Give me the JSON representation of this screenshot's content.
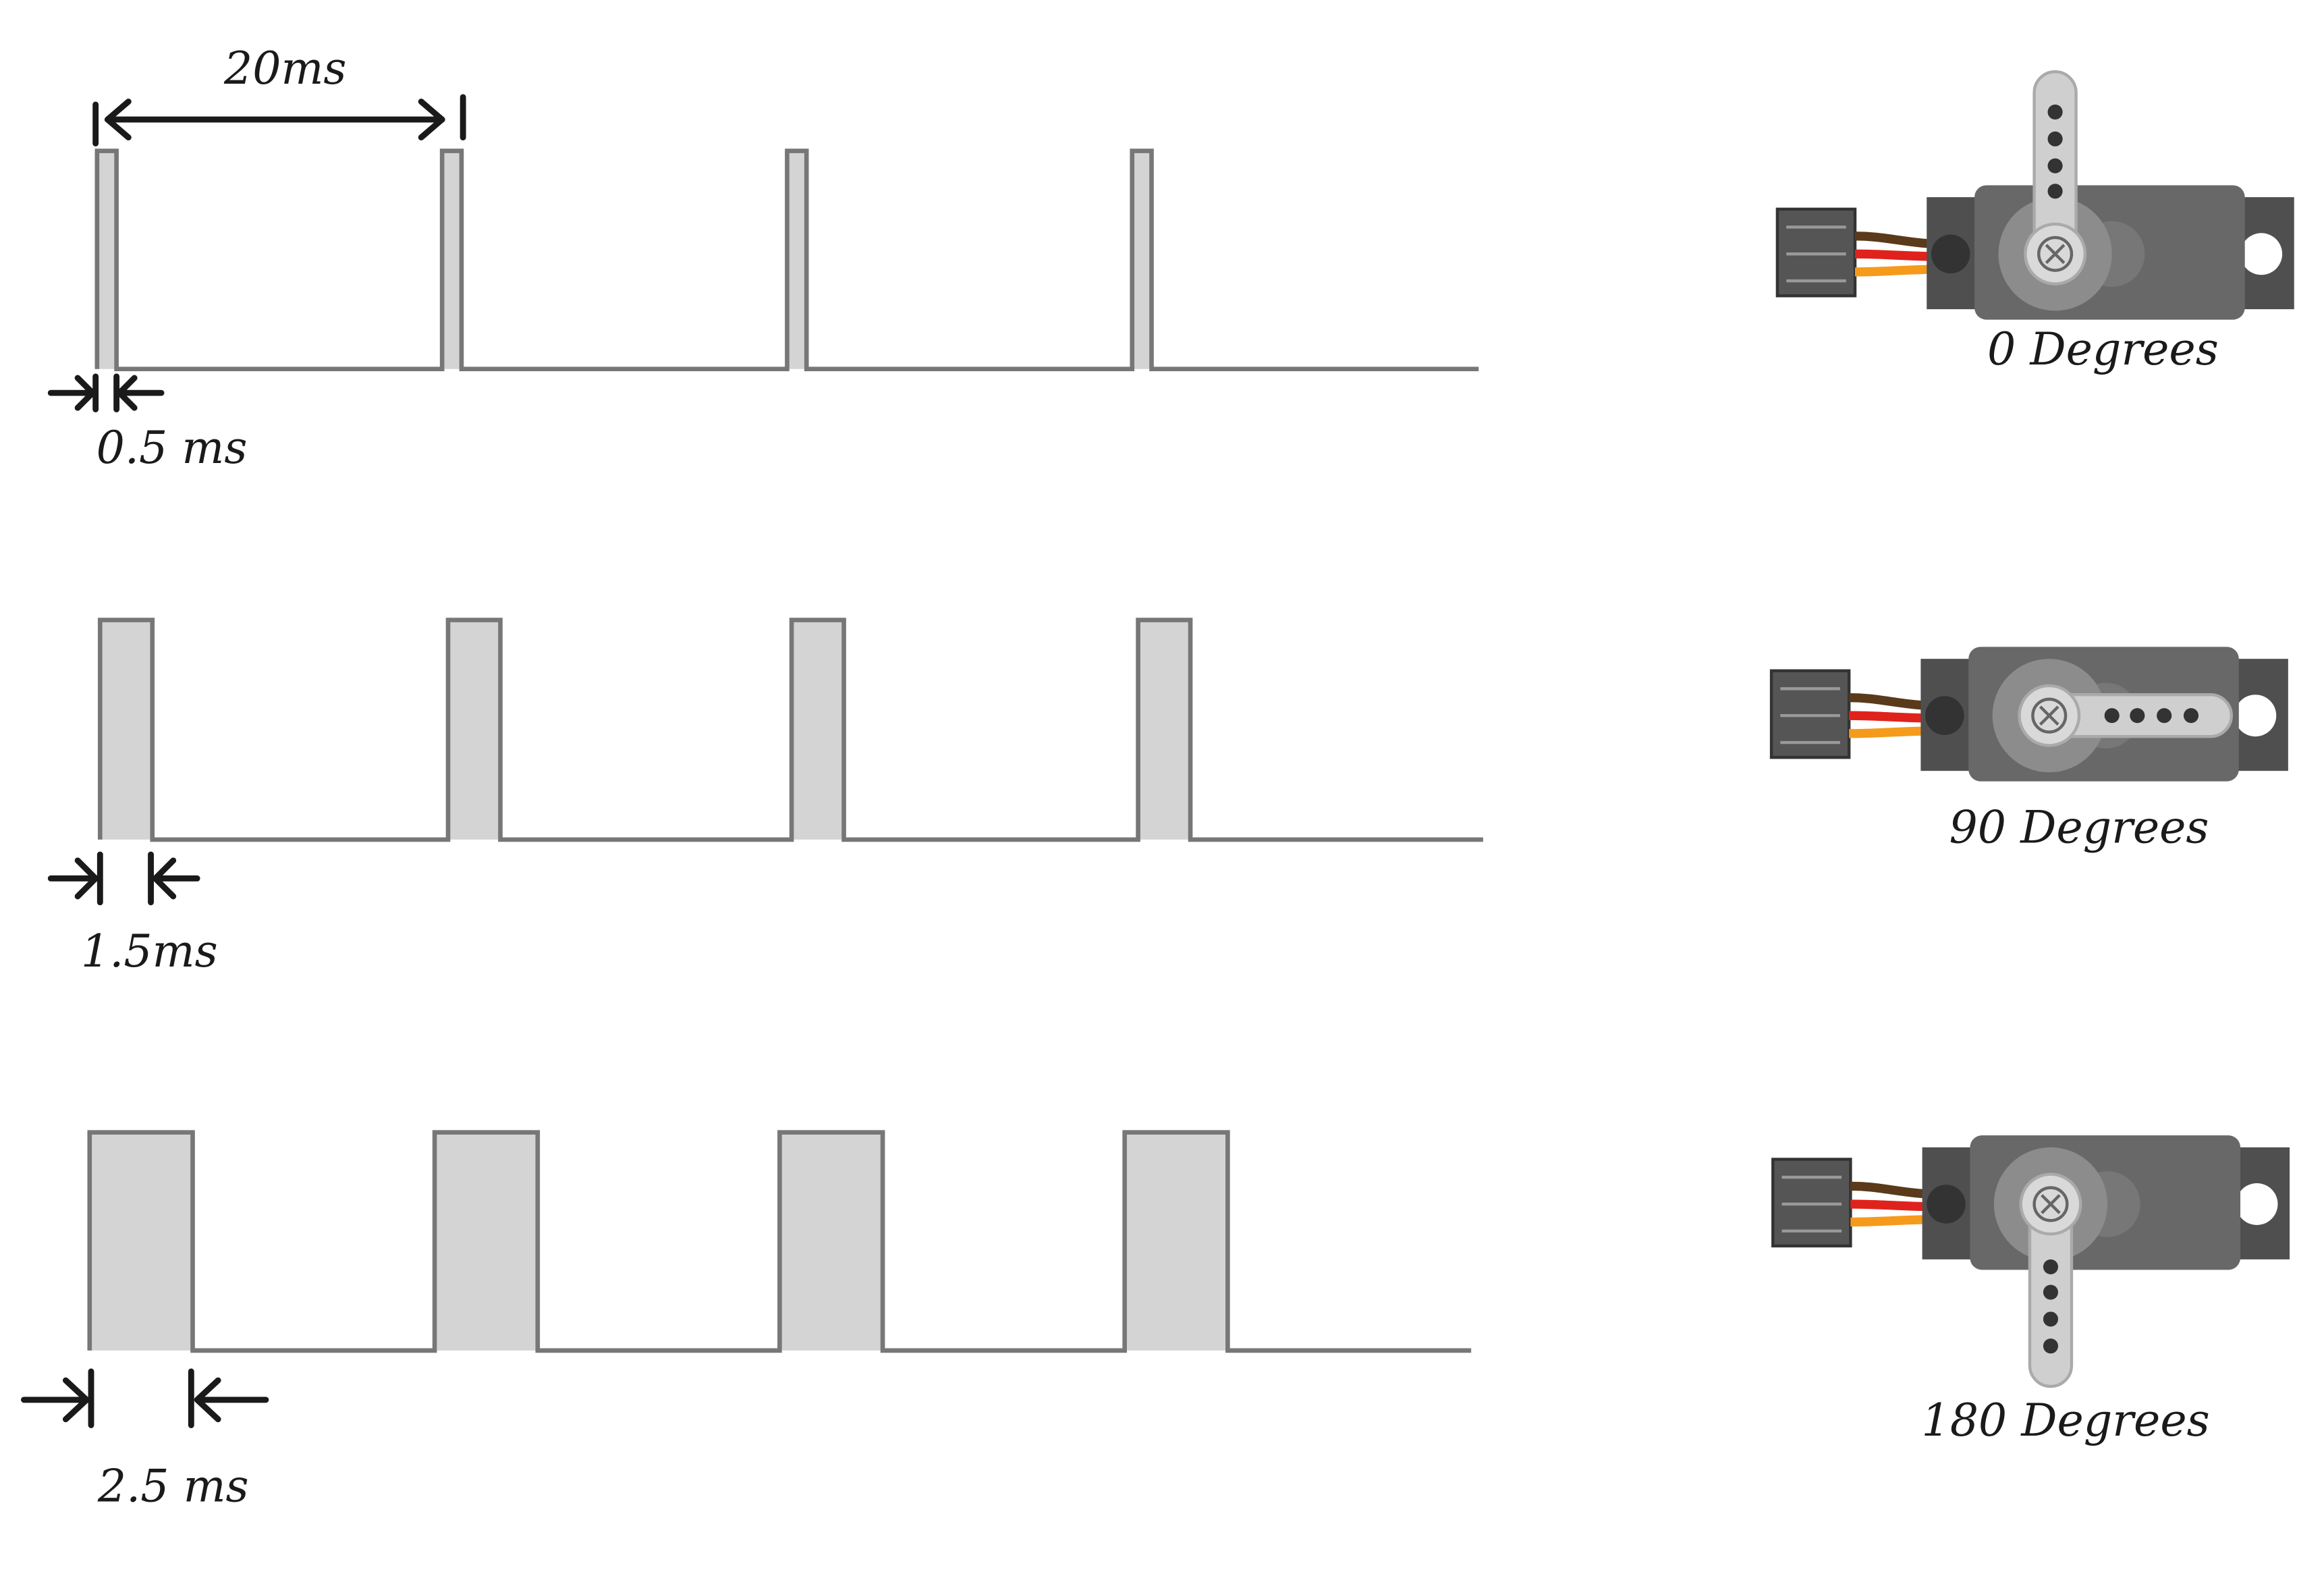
{
  "timing": {
    "period_label": "20ms"
  },
  "rows": [
    {
      "pulse_width": "0.5 ms",
      "position": "0 Degrees"
    },
    {
      "pulse_width": "1.5ms",
      "position": "90 Degrees"
    },
    {
      "pulse_width": "2.5 ms",
      "position": "180 Degrees"
    }
  ]
}
